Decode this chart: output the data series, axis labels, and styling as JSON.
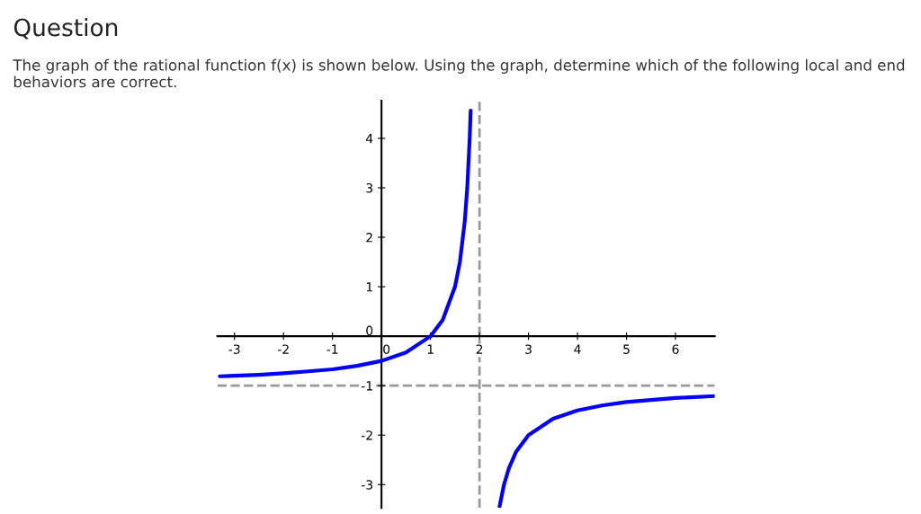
{
  "chart_data": {
    "type": "line",
    "title": "Question",
    "subtitle": "The graph of the rational function f(x) is shown below. Using the graph, determine which of the following local and end behaviors are correct.",
    "series": [
      {
        "color": "#0000ff",
        "x": [
          -3.3,
          -3,
          -2.5,
          -2,
          -1.5,
          -1,
          -0.5,
          0,
          0.5,
          1,
          1.25,
          1.5,
          1.6,
          1.7,
          1.75,
          1.8,
          1.82
        ],
        "values": [
          -0.81,
          -0.8,
          -0.78,
          -0.75,
          -0.71,
          -0.67,
          -0.6,
          -0.5,
          -0.33,
          0,
          0.33,
          1,
          1.5,
          2.33,
          3,
          4,
          4.56
        ]
      },
      {
        "color": "#0000ff",
        "x": [
          2.41,
          2.5,
          2.6,
          2.75,
          3,
          3.5,
          4,
          4.5,
          5,
          5.5,
          6,
          6.8
        ],
        "values": [
          -3.44,
          -3,
          -2.67,
          -2.33,
          -2,
          -1.67,
          -1.5,
          -1.4,
          -1.33,
          -1.29,
          -1.25,
          -1.21
        ]
      }
    ],
    "xlim": [
      -3.35,
      6.8
    ],
    "ylim": [
      -3.47,
      4.76
    ],
    "xticks": [
      -3,
      -2,
      -1,
      0,
      1,
      2,
      3,
      4,
      5,
      6
    ],
    "yticks": [
      -3,
      -2,
      -1,
      0,
      1,
      2,
      3,
      4
    ],
    "ref_lines": [
      {
        "axis": "x",
        "value": 2,
        "color": "#999999",
        "line_style": "dashed"
      },
      {
        "axis": "y",
        "value": -1,
        "color": "#999999",
        "line_style": "dashed"
      }
    ],
    "grid": false,
    "legend": false,
    "marker": "none",
    "line_style": "solid"
  }
}
